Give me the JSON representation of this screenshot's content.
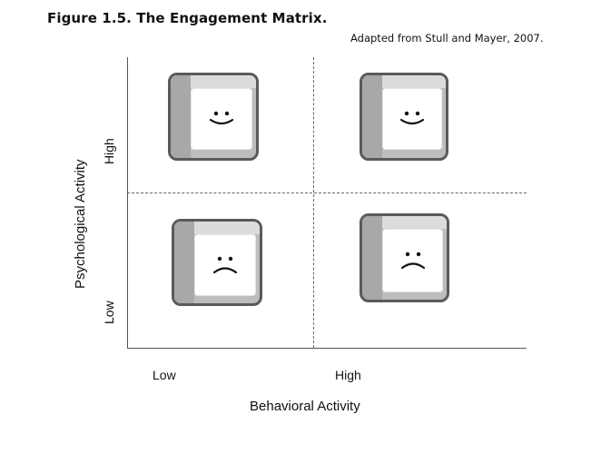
{
  "figure": {
    "title": "Figure 1.5.  The Engagement Matrix.",
    "source": "Adapted from Stull and Mayer, 2007."
  },
  "axes": {
    "x_label": "Behavioral Activity",
    "y_label": "Psychological Activity",
    "x_ticks": [
      "Low",
      "High"
    ],
    "y_ticks": [
      "Low",
      "High"
    ]
  },
  "quadrants": [
    {
      "position": "top-left",
      "icon": "smiley-face-icon"
    },
    {
      "position": "top-right",
      "icon": "smiley-face-icon"
    },
    {
      "position": "bottom-left",
      "icon": "frowny-face-icon"
    },
    {
      "position": "bottom-right",
      "icon": "frowny-face-icon"
    }
  ],
  "colors": {
    "key_border": "#5a5a5a",
    "key_body": "#bdbdbd",
    "key_face": "#ffffff",
    "dashed_divider": "#666666"
  }
}
